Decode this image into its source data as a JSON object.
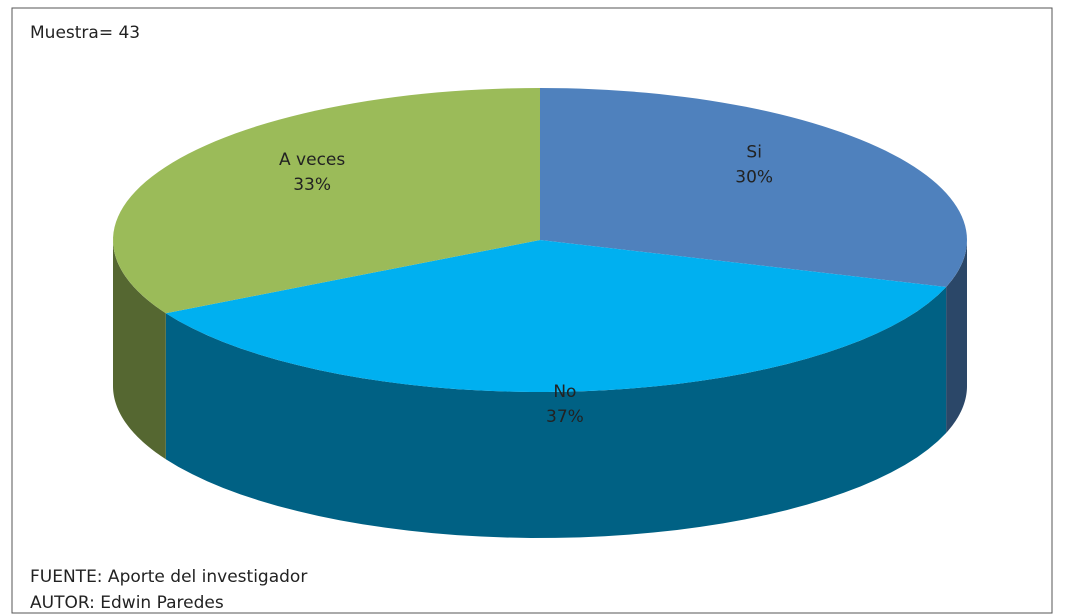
{
  "chart_data": {
    "type": "pie",
    "annotations": [
      "Muestra= 43",
      "FUENTE: Aporte del investigador",
      "AUTOR: Edwin Paredes"
    ],
    "categories": [
      "Si",
      "No",
      "A veces"
    ],
    "values": [
      30,
      37,
      33
    ],
    "value_labels": [
      "30%",
      "37%",
      "33%"
    ],
    "colors": [
      "#4f81bd",
      "#00b0f0",
      "#9bbb59"
    ]
  }
}
